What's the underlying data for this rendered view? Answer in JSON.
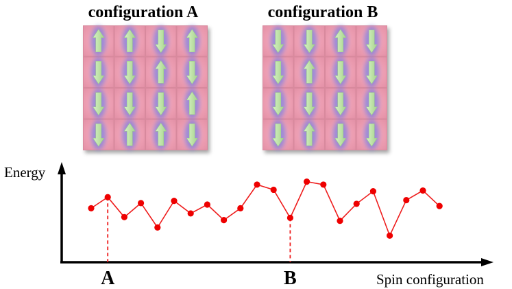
{
  "panels": [
    {
      "title": "configuration A",
      "spins": [
        [
          "up",
          "up",
          "down",
          "up"
        ],
        [
          "down",
          "down",
          "up",
          "down"
        ],
        [
          "down",
          "down",
          "down",
          "up"
        ],
        [
          "down",
          "up",
          "up",
          "down"
        ]
      ]
    },
    {
      "title": "configuration B",
      "spins": [
        [
          "down",
          "down",
          "up",
          "down"
        ],
        [
          "down",
          "up",
          "down",
          "down"
        ],
        [
          "down",
          "down",
          "down",
          "down"
        ],
        [
          "down",
          "up",
          "down",
          "down"
        ]
      ]
    }
  ],
  "plot": {
    "y_axis_label": "Energy",
    "x_axis_label": "Spin configuration",
    "markers": [
      {
        "label": "A",
        "index": 1
      },
      {
        "label": "B",
        "index": 12
      }
    ],
    "energies": [
      0.43,
      0.58,
      0.31,
      0.5,
      0.17,
      0.53,
      0.36,
      0.48,
      0.27,
      0.43,
      0.75,
      0.68,
      0.3,
      0.79,
      0.75,
      0.26,
      0.49,
      0.66,
      0.06,
      0.54,
      0.67,
      0.46
    ],
    "energy_range": [
      -0.3,
      1.0
    ],
    "colors": {
      "line": "#ee1c1c",
      "point": "#ee0000",
      "axis": "#000000"
    }
  },
  "colors": {
    "tile": "#f2a7b8",
    "spin_glow": "#8f8fe6",
    "arrow": "#c7e9b4"
  }
}
